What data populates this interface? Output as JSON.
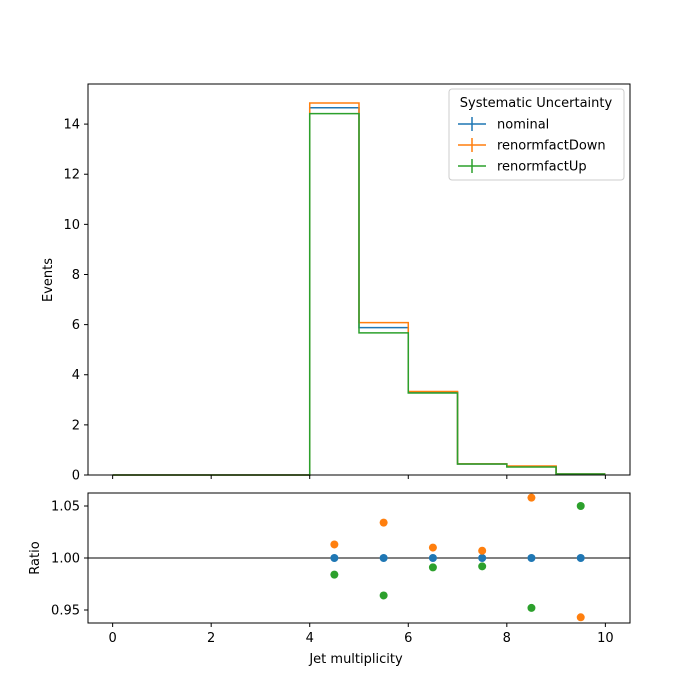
{
  "chart_data": [
    {
      "type": "line",
      "style": "step-histogram",
      "xlabel": "",
      "ylabel": "Events",
      "xlim": [
        -0.5,
        10.5
      ],
      "ylim": [
        0,
        15.6
      ],
      "xticks": [
        0,
        2,
        4,
        6,
        8,
        10
      ],
      "yticks": [
        0,
        2,
        4,
        6,
        8,
        10,
        12,
        14
      ],
      "bin_edges": [
        0,
        1,
        2,
        3,
        4,
        5,
        6,
        7,
        8,
        9,
        10
      ],
      "grid": false,
      "legend": {
        "title": "Systematic Uncertainty",
        "placement": "top-right"
      },
      "series": [
        {
          "name": "nominal",
          "color": "#1f77b4",
          "values": [
            0,
            0,
            0,
            0,
            14.65,
            5.88,
            3.3,
            0.44,
            0.34,
            0.04
          ]
        },
        {
          "name": "renormfactDown",
          "color": "#ff7f0e",
          "values": [
            0,
            0,
            0,
            0,
            14.84,
            6.08,
            3.33,
            0.443,
            0.36,
            0.038
          ]
        },
        {
          "name": "renormfactUp",
          "color": "#2ca02c",
          "values": [
            0,
            0,
            0,
            0,
            14.42,
            5.67,
            3.27,
            0.437,
            0.32,
            0.042
          ]
        }
      ]
    },
    {
      "type": "scatter",
      "xlabel": "Jet multiplicity",
      "ylabel": "Ratio",
      "xlim": [
        -0.5,
        10.5
      ],
      "ylim": [
        0.9375,
        1.0625
      ],
      "xticks": [
        0,
        2,
        4,
        6,
        8,
        10
      ],
      "yticks": [
        0.95,
        1.0,
        1.05
      ],
      "ytick_labels": [
        "0.95",
        "1.00",
        "1.05"
      ],
      "reference_line": 1.0,
      "grid": false,
      "x": [
        4.5,
        5.5,
        6.5,
        7.5,
        8.5,
        9.5
      ],
      "series": [
        {
          "name": "nominal",
          "color": "#1f77b4",
          "values": [
            1.0,
            1.0,
            1.0,
            1.0,
            1.0,
            1.0
          ]
        },
        {
          "name": "renormfactDown",
          "color": "#ff7f0e",
          "values": [
            1.013,
            1.034,
            1.01,
            1.007,
            1.058,
            0.943
          ]
        },
        {
          "name": "renormfactUp",
          "color": "#2ca02c",
          "values": [
            0.984,
            0.964,
            0.991,
            0.992,
            0.952,
            1.05
          ]
        }
      ]
    }
  ]
}
